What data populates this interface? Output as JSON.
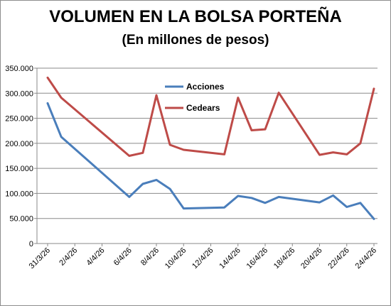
{
  "chart_data": {
    "type": "line",
    "title": "VOLUMEN EN LA BOLSA PORTEÑA",
    "subtitle": "(En millones de pesos)",
    "xlabel": "",
    "ylabel": "",
    "ylim": [
      0,
      350000
    ],
    "yticks": [
      0,
      50000,
      100000,
      150000,
      200000,
      250000,
      300000,
      350000
    ],
    "ytick_labels": [
      "0",
      "50.000",
      "100.000",
      "150.000",
      "200.000",
      "250.000",
      "300.000",
      "350.000"
    ],
    "x_start": "2026-03-31",
    "x_days": 24,
    "xtick_labels": [
      "31/3/26",
      "2/4/26",
      "4/4/26",
      "6/4/26",
      "8/4/26",
      "10/4/26",
      "12/4/26",
      "14/4/26",
      "16/4/26",
      "18/4/26",
      "20/4/26",
      "22/4/26",
      "24/4/26"
    ],
    "grid": true,
    "legend": "top-center",
    "series": [
      {
        "name": "Acciones",
        "color": "#4a7ebb",
        "dates": [
          "31/3/26",
          "1/4/26",
          "6/4/26",
          "7/4/26",
          "8/4/26",
          "9/4/26",
          "10/4/26",
          "13/4/26",
          "14/4/26",
          "15/4/26",
          "16/4/26",
          "17/4/26",
          "20/4/26",
          "21/4/26",
          "22/4/26",
          "23/4/26",
          "24/4/26"
        ],
        "values": [
          280000,
          213000,
          93000,
          119000,
          127000,
          109000,
          70000,
          72000,
          95000,
          91000,
          81000,
          93000,
          82000,
          96000,
          73000,
          81000,
          49000
        ]
      },
      {
        "name": "Cedears",
        "color": "#be4b48",
        "dates": [
          "31/3/26",
          "1/4/26",
          "6/4/26",
          "7/4/26",
          "8/4/26",
          "9/4/26",
          "10/4/26",
          "13/4/26",
          "14/4/26",
          "15/4/26",
          "16/4/26",
          "17/4/26",
          "20/4/26",
          "21/4/26",
          "22/4/26",
          "23/4/26",
          "24/4/26"
        ],
        "values": [
          331000,
          291000,
          175000,
          181000,
          296000,
          197000,
          187000,
          178000,
          291000,
          226000,
          228000,
          301000,
          177000,
          182000,
          178000,
          200000,
          309000
        ]
      }
    ]
  }
}
